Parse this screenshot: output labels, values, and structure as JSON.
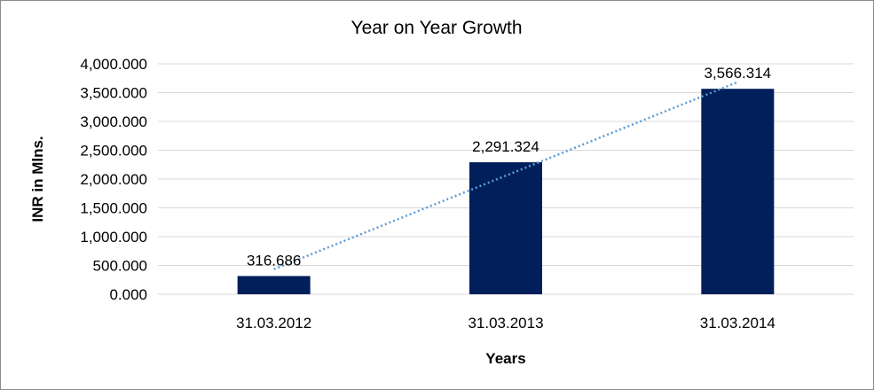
{
  "chart_data": {
    "type": "bar",
    "title": "Year on Year Growth",
    "xlabel": "Years",
    "ylabel": "INR in Mlns.",
    "categories": [
      "31.03.2012",
      "31.03.2013",
      "31.03.2014"
    ],
    "values": [
      316.686,
      2291.324,
      3566.314
    ],
    "data_labels": [
      "316.686",
      "2,291.324",
      "3,566.314"
    ],
    "y_ticks": [
      0,
      500,
      1000,
      1500,
      2000,
      2500,
      3000,
      3500,
      4000
    ],
    "y_tick_labels": [
      "0.000",
      "500.000",
      "1,000.000",
      "1,500.000",
      "2,000.000",
      "2,500.000",
      "3,000.000",
      "3,500.000",
      "4,000.000"
    ],
    "ylim": [
      0,
      4000
    ],
    "grid": true,
    "trendline": "linear",
    "colors": {
      "bar": "#001f5b",
      "trendline": "#5b9bd5",
      "grid": "#d9d9d9"
    }
  }
}
